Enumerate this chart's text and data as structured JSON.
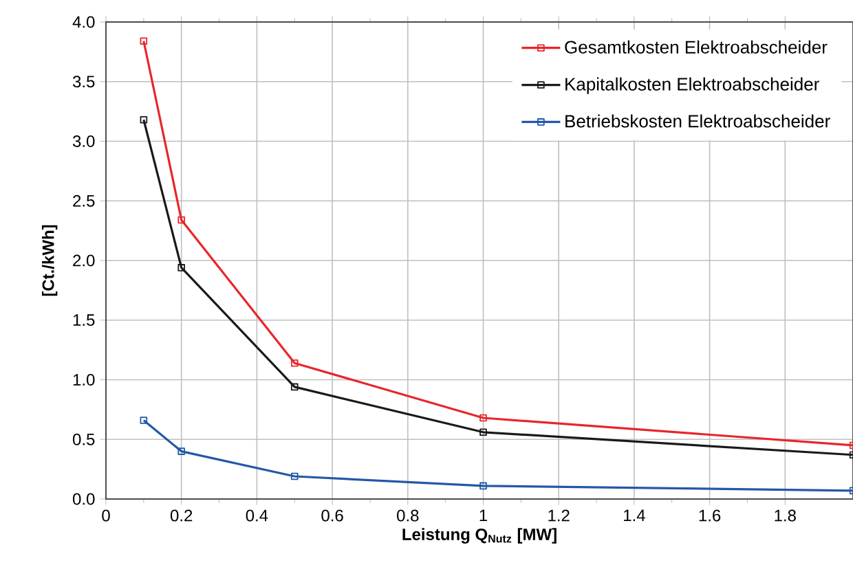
{
  "chart_data": {
    "type": "line",
    "xlabel": "Leistung Q$_{Nutz}$ [MW]",
    "ylabel": "[Ct./kWh]",
    "x": [
      0.1,
      0.2,
      0.5,
      1,
      1.98
    ],
    "series": [
      {
        "name": "Gesamtkosten Elektroabscheider",
        "color": "#e8262b",
        "values": [
          3.84,
          2.34,
          1.14,
          0.68,
          0.45
        ]
      },
      {
        "name": "Kapitalkosten Elektroabscheider",
        "color": "#1a1a1a",
        "values": [
          3.18,
          1.94,
          0.94,
          0.56,
          0.37
        ]
      },
      {
        "name": "Betriebskosten Elektroabscheider",
        "color": "#2358a8",
        "values": [
          0.66,
          0.4,
          0.19,
          0.11,
          0.07
        ]
      }
    ],
    "xlim": [
      0,
      1.98
    ],
    "ylim": [
      0,
      4
    ],
    "xticks": [
      0,
      0.2,
      0.4,
      0.6,
      0.8,
      1,
      1.2,
      1.4,
      1.6,
      1.8
    ],
    "yticks": [
      {
        "value": 0,
        "label": "0.0"
      },
      {
        "value": 0.5,
        "label": "0.5"
      },
      {
        "value": 1,
        "label": "1.0"
      },
      {
        "value": 1.5,
        "label": "1.5"
      },
      {
        "value": 2,
        "label": "2.0"
      },
      {
        "value": 2.5,
        "label": "2.5"
      },
      {
        "value": 3,
        "label": "3.0"
      },
      {
        "value": 3.5,
        "label": "3.5"
      },
      {
        "value": 4,
        "label": "4.0"
      }
    ],
    "grid": true,
    "legend": "top right",
    "marker": "square",
    "line_style": "solid"
  }
}
